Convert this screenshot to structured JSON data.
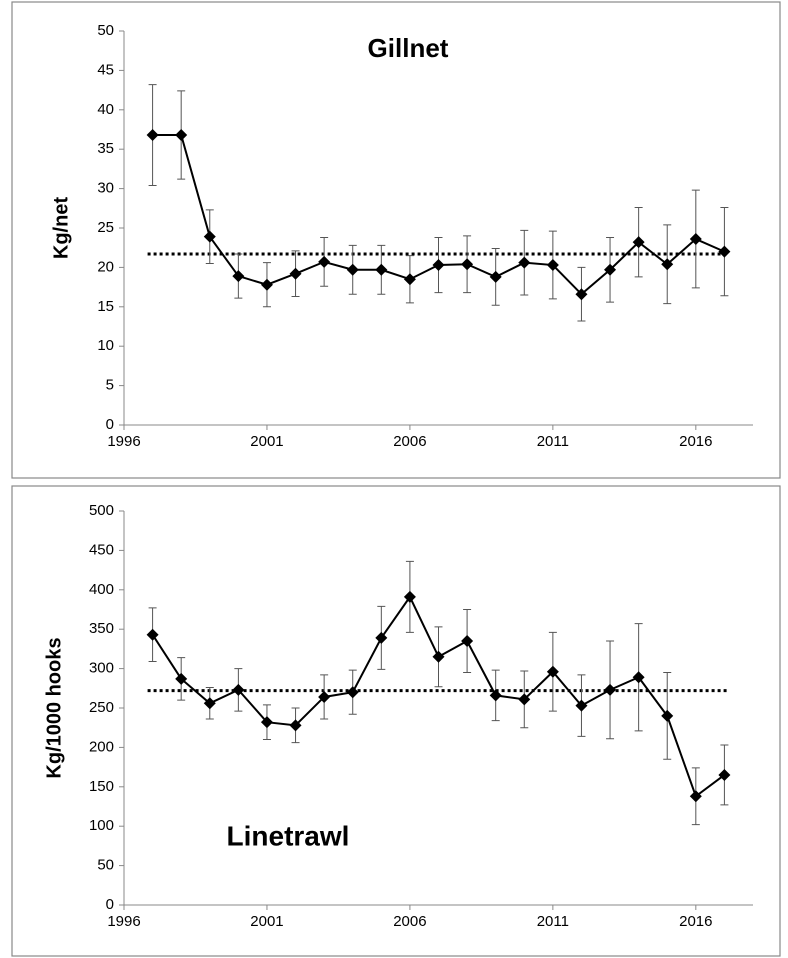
{
  "chart_data": [
    {
      "type": "line",
      "title": "Gillnet",
      "y_label": "Kg/net",
      "color": "#000000",
      "x": [
        1997,
        1998,
        1999,
        2000,
        2001,
        2002,
        2003,
        2004,
        2005,
        2006,
        2007,
        2008,
        2009,
        2010,
        2011,
        2012,
        2013,
        2014,
        2015,
        2016,
        2017
      ],
      "values": [
        36.8,
        36.8,
        23.9,
        18.9,
        17.8,
        19.2,
        20.7,
        19.7,
        19.7,
        18.5,
        20.3,
        20.4,
        18.8,
        20.6,
        20.3,
        16.6,
        19.7,
        23.2,
        20.4,
        23.6,
        22.0
      ],
      "error": [
        6.4,
        5.6,
        3.4,
        2.8,
        2.8,
        2.9,
        3.1,
        3.1,
        3.1,
        3.0,
        3.5,
        3.6,
        3.6,
        4.1,
        4.3,
        3.4,
        4.1,
        4.4,
        5.0,
        6.2,
        5.6
      ],
      "reference_line": 21.7,
      "xlim": [
        1996,
        2018
      ],
      "xticks": [
        1996,
        2001,
        2006,
        2011,
        2016
      ],
      "ylim": [
        0,
        50
      ],
      "yticks": [
        0,
        5,
        10,
        15,
        20,
        25,
        30,
        35,
        40,
        45,
        50
      ]
    },
    {
      "type": "line",
      "title": "Linetrawl",
      "y_label": "Kg/1000 hooks",
      "color": "#000000",
      "x": [
        1997,
        1998,
        1999,
        2000,
        2001,
        2002,
        2003,
        2004,
        2005,
        2006,
        2007,
        2008,
        2009,
        2010,
        2011,
        2012,
        2013,
        2014,
        2015,
        2016,
        2017
      ],
      "values": [
        343,
        287,
        256,
        273,
        232,
        228,
        264,
        270,
        339,
        391,
        315,
        335,
        266,
        261,
        296,
        253,
        273,
        289,
        240,
        138,
        165
      ],
      "error": [
        34,
        27,
        20,
        27,
        22,
        22,
        28,
        28,
        40,
        45,
        38,
        40,
        32,
        36,
        50,
        39,
        62,
        68,
        55,
        36,
        38
      ],
      "reference_line": 272,
      "xlim": [
        1996,
        2018
      ],
      "xticks": [
        1996,
        2001,
        2006,
        2011,
        2016
      ],
      "ylim": [
        0,
        500
      ],
      "yticks": [
        0,
        50,
        100,
        150,
        200,
        250,
        300,
        350,
        400,
        450,
        500
      ]
    }
  ]
}
